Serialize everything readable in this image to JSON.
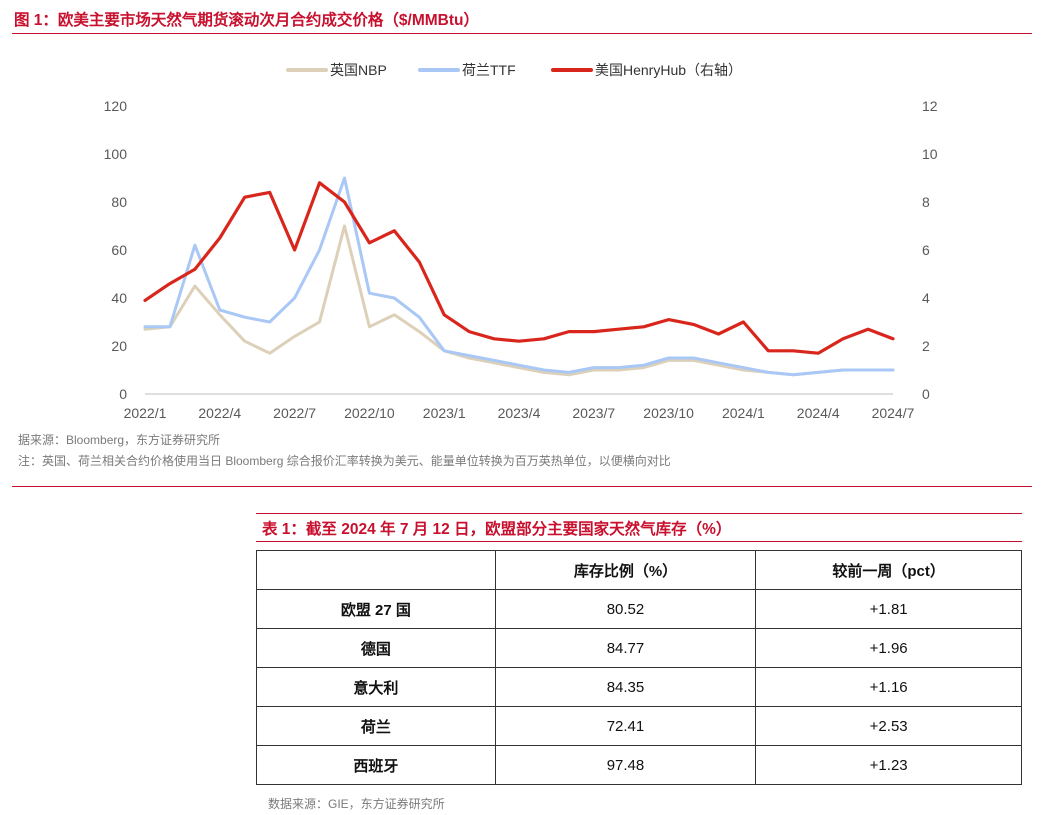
{
  "figure": {
    "title": "图 1：欧美主要市场天然气期货滚动次月合约成交价格（$/MMBtu）",
    "source": "据来源：Bloomberg，东方证券研究所",
    "note": "注：英国、荷兰相关合约价格使用当日 Bloomberg 综合报价汇率转换为美元、能量单位转换为百万英热单位，以便横向对比"
  },
  "chart_data": {
    "type": "line",
    "x": [
      "2022/1",
      "2022/2",
      "2022/3",
      "2022/4",
      "2022/5",
      "2022/6",
      "2022/7",
      "2022/8",
      "2022/9",
      "2022/10",
      "2022/11",
      "2022/12",
      "2023/1",
      "2023/2",
      "2023/3",
      "2023/4",
      "2023/5",
      "2023/6",
      "2023/7",
      "2023/8",
      "2023/9",
      "2023/10",
      "2023/11",
      "2023/12",
      "2024/1",
      "2024/2",
      "2024/3",
      "2024/4",
      "2024/5",
      "2024/6",
      "2024/7"
    ],
    "x_ticks": [
      "2022/1",
      "2022/4",
      "2022/7",
      "2022/10",
      "2023/1",
      "2023/4",
      "2023/7",
      "2023/10",
      "2024/1",
      "2024/4",
      "2024/7"
    ],
    "series": [
      {
        "name": "英国NBP",
        "axis": "left",
        "color": "#ddd0b8",
        "values": [
          27,
          28,
          45,
          33,
          22,
          17,
          24,
          30,
          70,
          28,
          33,
          26,
          18,
          15,
          13,
          11,
          9,
          8,
          10,
          10,
          11,
          14,
          14,
          12,
          10,
          9,
          8,
          9,
          10,
          10,
          10
        ]
      },
      {
        "name": "荷兰TTF",
        "axis": "left",
        "color": "#a9c8f5",
        "values": [
          28,
          28,
          62,
          35,
          32,
          30,
          40,
          60,
          90,
          42,
          40,
          32,
          18,
          16,
          14,
          12,
          10,
          9,
          11,
          11,
          12,
          15,
          15,
          13,
          11,
          9,
          8,
          9,
          10,
          10,
          10
        ]
      },
      {
        "name": "美国HenryHub（右轴）",
        "axis": "right",
        "color": "#d9261c",
        "values": [
          3.9,
          4.6,
          5.2,
          6.5,
          8.2,
          8.4,
          6.0,
          8.8,
          8.0,
          6.3,
          6.8,
          5.5,
          3.3,
          2.6,
          2.3,
          2.2,
          2.3,
          2.6,
          2.6,
          2.7,
          2.8,
          3.1,
          2.9,
          2.5,
          3.0,
          1.8,
          1.8,
          1.7,
          2.3,
          2.7,
          2.3
        ]
      }
    ],
    "y_left": {
      "min": 0,
      "max": 120,
      "ticks": [
        0,
        20,
        40,
        60,
        80,
        100,
        120
      ]
    },
    "y_right": {
      "min": 0,
      "max": 12,
      "ticks": [
        0,
        2,
        4,
        6,
        8,
        10,
        12
      ]
    },
    "legend_position": "top-center",
    "grid": false
  },
  "table": {
    "title": "表 1：截至 2024 年 7 月 12 日，欧盟部分主要国家天然气库存（%）",
    "headers": [
      "",
      "库存比例（%）",
      "较前一周（pct）"
    ],
    "rows": [
      {
        "name": "欧盟 27 国",
        "ratio": "80.52",
        "change": "+1.81"
      },
      {
        "name": "德国",
        "ratio": "84.77",
        "change": "+1.96"
      },
      {
        "name": "意大利",
        "ratio": "84.35",
        "change": "+1.16"
      },
      {
        "name": "荷兰",
        "ratio": "72.41",
        "change": "+2.53"
      },
      {
        "name": "西班牙",
        "ratio": "97.48",
        "change": "+1.23"
      }
    ],
    "source": "数据来源：GIE，东方证券研究所"
  }
}
